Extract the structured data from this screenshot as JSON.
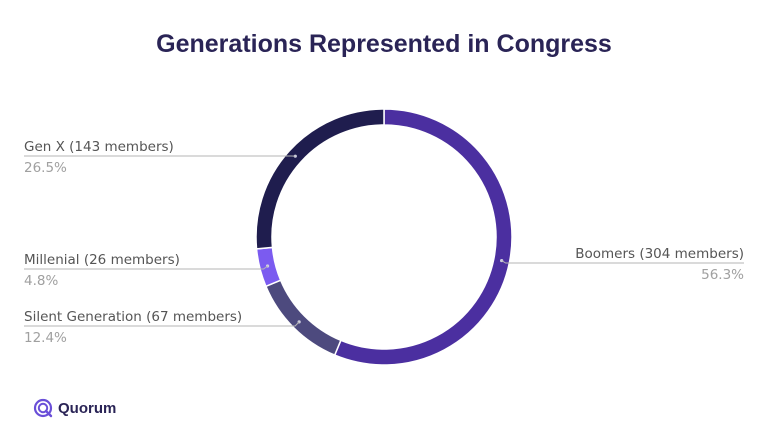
{
  "chart_data": {
    "type": "pie",
    "title": "Generations Represented in Congress",
    "slices": [
      {
        "name": "Boomers",
        "count_label": "Boomers (304 members)",
        "value": 304,
        "percent": "56.3%",
        "color": "#4b2fa0"
      },
      {
        "name": "Silent Generation",
        "count_label": "Silent Generation (67 members)",
        "value": 67,
        "percent": "12.4%",
        "color": "#4d4a7e"
      },
      {
        "name": "Millenial",
        "count_label": "Millenial (26 members)",
        "value": 26,
        "percent": "4.8%",
        "color": "#7b5bf0"
      },
      {
        "name": "Gen X",
        "count_label": "Gen X (143 members)",
        "value": 143,
        "percent": "26.5%",
        "color": "#1f1d4e"
      }
    ]
  },
  "brand": {
    "name": "Quorum",
    "color": "#6a4fd8"
  }
}
